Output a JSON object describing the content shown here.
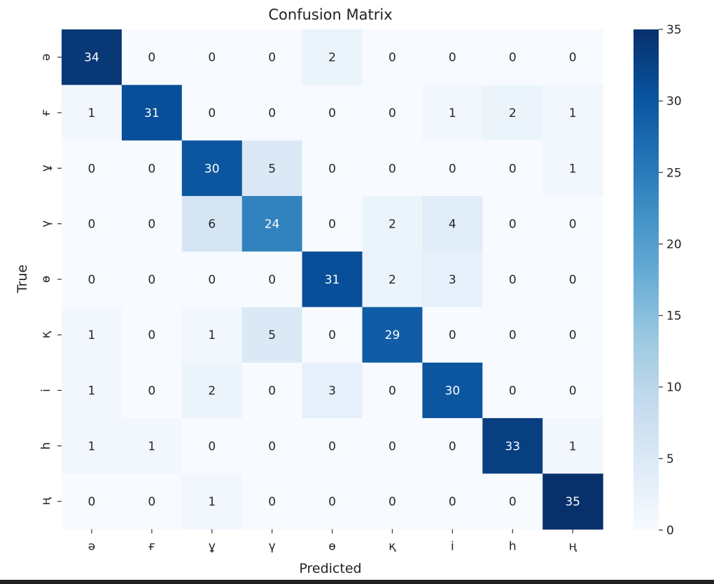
{
  "chart_data": {
    "type": "heatmap",
    "title": "Confusion Matrix",
    "xlabel": "Predicted",
    "ylabel": "True",
    "x_categories": [
      "ə",
      "ғ",
      "ұ",
      "ү",
      "ө",
      "қ",
      "і",
      "һ",
      "ң"
    ],
    "y_categories": [
      "ə",
      "ғ",
      "ұ",
      "ү",
      "ө",
      "қ",
      "і",
      "һ",
      "ң"
    ],
    "values": [
      [
        34,
        0,
        0,
        0,
        2,
        0,
        0,
        0,
        0
      ],
      [
        1,
        31,
        0,
        0,
        0,
        0,
        1,
        2,
        1
      ],
      [
        0,
        0,
        30,
        5,
        0,
        0,
        0,
        0,
        1
      ],
      [
        0,
        0,
        6,
        24,
        0,
        2,
        4,
        0,
        0
      ],
      [
        0,
        0,
        0,
        0,
        31,
        2,
        3,
        0,
        0
      ],
      [
        1,
        0,
        1,
        5,
        0,
        29,
        0,
        0,
        0
      ],
      [
        1,
        0,
        2,
        0,
        3,
        0,
        30,
        0,
        0
      ],
      [
        1,
        1,
        0,
        0,
        0,
        0,
        0,
        33,
        1
      ],
      [
        0,
        0,
        1,
        0,
        0,
        0,
        0,
        0,
        35
      ]
    ],
    "colorbar": {
      "range": [
        0,
        35
      ],
      "ticks": [
        0,
        5,
        10,
        15,
        20,
        25,
        30,
        35
      ],
      "colormap": "Blues",
      "color_low": "#f7fbff",
      "color_high": "#08306b"
    }
  }
}
